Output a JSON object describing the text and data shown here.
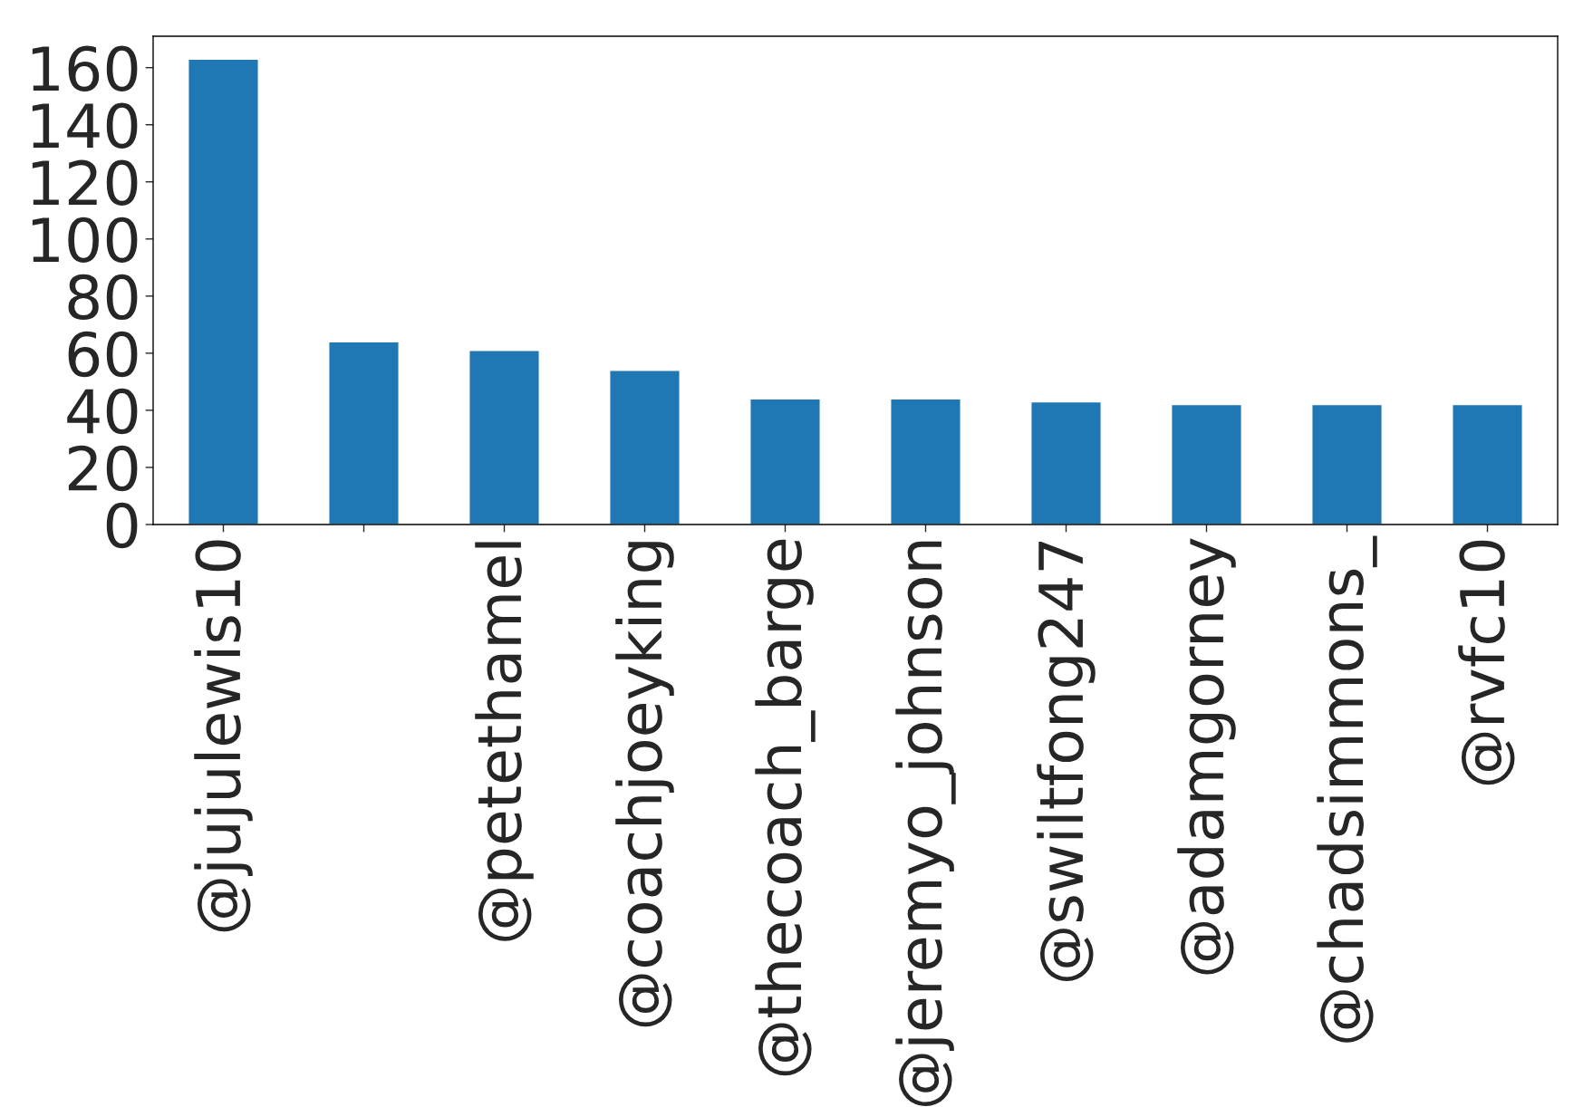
{
  "chart_data": {
    "type": "bar",
    "categories": [
      "@jujulewis10",
      null,
      "@petethamel",
      "@coachjoeyking",
      "@thecoach_barge",
      "@jeremyo_johnson",
      "@swiltfong247",
      "@adamgorney",
      "@chadsimmons_",
      "@rvfc10"
    ],
    "values": [
      163,
      64,
      61,
      54,
      44,
      44,
      43,
      42,
      42,
      42
    ],
    "color": "#1f77b4",
    "ylim": [
      0,
      171
    ],
    "yticks": [
      0,
      20,
      40,
      60,
      80,
      100,
      120,
      140,
      160
    ]
  }
}
